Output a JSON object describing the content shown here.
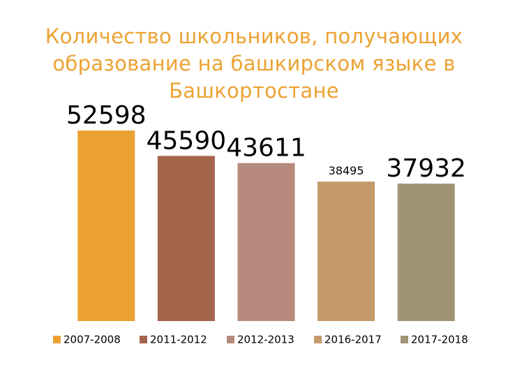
{
  "chart_data": {
    "type": "bar",
    "title": "Количество школьников, получающих образование на башкирском языке в Башкортостане",
    "categories": [
      "2007-2008",
      "2011-2012",
      "2012-2013",
      "2016-2017",
      "2017-2018"
    ],
    "values": [
      52598,
      45590,
      43611,
      38495,
      37932
    ],
    "colors": [
      "#eca232",
      "#a4654d",
      "#b68a7d",
      "#c4996a",
      "#a09474"
    ],
    "legend": "bottom"
  }
}
